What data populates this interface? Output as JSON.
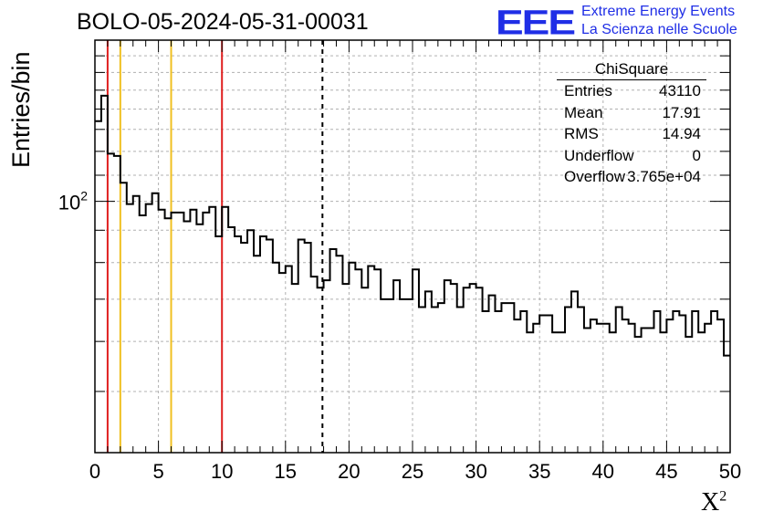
{
  "title": "BOLO-05-2024-05-31-00031",
  "logo": {
    "mark": "EEE",
    "line1": "Extreme Energy Events",
    "line2": "La Scienza nelle Scuole",
    "color": "#1f2ee6"
  },
  "stats_box": {
    "title": "ChiSquare",
    "rows": [
      {
        "key": "Entries",
        "value": "43110"
      },
      {
        "key": "Mean",
        "value": "17.91"
      },
      {
        "key": "RMS",
        "value": "14.94"
      },
      {
        "key": "Underflow",
        "value": "0"
      },
      {
        "key": "Overflow",
        "value": "3.765e+04"
      }
    ]
  },
  "chart_data": {
    "type": "histogram",
    "ylabel": "Entries/bin",
    "xlabel_base": "X",
    "xlabel_sup": "2",
    "xlim": [
      0,
      50
    ],
    "ylim": [
      40,
      180
    ],
    "yscale": "log",
    "ytick_base": "10",
    "ytick_exp": "2",
    "ytick_value": 100,
    "xticks": [
      0,
      5,
      10,
      15,
      20,
      25,
      30,
      35,
      40,
      45,
      50
    ],
    "grid": true,
    "bin_width": 0.5,
    "counts": [
      134,
      147,
      119,
      118,
      107,
      99,
      102,
      95,
      99,
      103,
      97,
      94,
      96,
      96,
      93,
      97,
      92,
      96,
      98,
      88,
      98,
      91,
      88,
      86,
      90,
      82,
      88,
      87,
      80,
      77,
      79,
      74,
      87,
      86,
      76,
      73,
      75,
      84,
      82,
      74,
      80,
      78,
      73,
      79,
      78,
      70,
      70,
      75,
      70,
      70,
      78,
      68,
      72,
      68,
      69,
      75,
      74,
      68,
      73,
      74,
      73,
      67,
      71,
      67,
      69,
      69,
      65,
      67,
      62,
      64,
      66,
      66,
      62,
      62,
      68,
      72,
      68,
      63,
      65,
      64,
      64,
      62,
      68,
      65,
      64,
      61,
      63,
      63,
      67,
      62,
      65,
      67,
      66,
      61,
      67,
      62,
      64,
      67,
      65,
      57
    ],
    "vertical_lines": [
      {
        "x": 1,
        "color": "#e02020",
        "style": "solid"
      },
      {
        "x": 2,
        "color": "#f0c020",
        "style": "solid"
      },
      {
        "x": 6,
        "color": "#f0c020",
        "style": "solid"
      },
      {
        "x": 10,
        "color": "#e02020",
        "style": "solid"
      },
      {
        "x": 17.91,
        "color": "#000000",
        "style": "dashed"
      }
    ]
  }
}
